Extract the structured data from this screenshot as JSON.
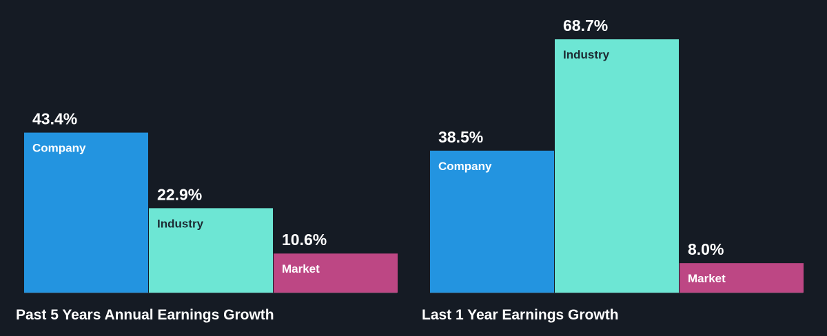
{
  "chart_data": [
    {
      "type": "bar",
      "title": "Past 5 Years Annual Earnings Growth",
      "categories": [
        "Company",
        "Industry",
        "Market"
      ],
      "values": [
        43.4,
        22.9,
        10.6
      ],
      "value_labels": [
        "43.4%",
        "22.9%",
        "10.6%"
      ],
      "colors": [
        "#2394e0",
        "#6de6d4",
        "#bd4784"
      ],
      "label_colors": [
        "#ffffff",
        "#1d2b33",
        "#ffffff"
      ],
      "ylim": [
        0,
        70
      ],
      "grid": false,
      "legend": "none"
    },
    {
      "type": "bar",
      "title": "Last 1 Year Earnings Growth",
      "categories": [
        "Company",
        "Industry",
        "Market"
      ],
      "values": [
        38.5,
        68.7,
        8.0
      ],
      "value_labels": [
        "38.5%",
        "68.7%",
        "8.0%"
      ],
      "colors": [
        "#2394e0",
        "#6de6d4",
        "#bd4784"
      ],
      "label_colors": [
        "#ffffff",
        "#1d2b33",
        "#ffffff"
      ],
      "ylim": [
        0,
        70
      ],
      "grid": false,
      "legend": "none"
    }
  ]
}
